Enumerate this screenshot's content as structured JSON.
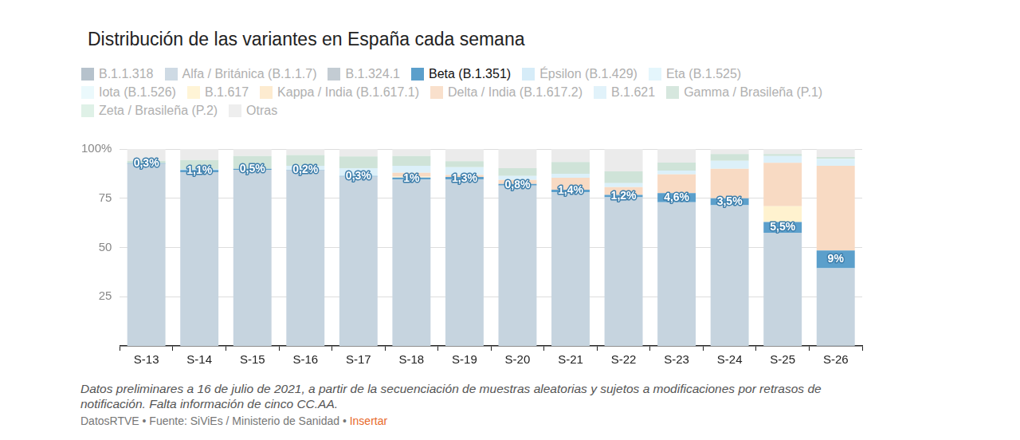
{
  "chart_data": {
    "type": "bar",
    "title": "Distribución de las variantes en España cada semana",
    "stacked": true,
    "grid": true,
    "legend": "top",
    "categories": [
      "S-13",
      "S-14",
      "S-15",
      "S-16",
      "S-17",
      "S-18",
      "S-19",
      "S-20",
      "S-21",
      "S-22",
      "S-23",
      "S-24",
      "S-25",
      "S-26"
    ],
    "ylim": [
      0,
      100
    ],
    "yticks": [
      25,
      50,
      75,
      {
        "value": 100,
        "label": "100%"
      }
    ],
    "series": [
      {
        "name": "B.1.1.318",
        "color": "#a9b7c3",
        "values": [
          0,
          0,
          0,
          0,
          0,
          0,
          0,
          0,
          0,
          0,
          0,
          0,
          0,
          0.5
        ]
      },
      {
        "name": "Alfa / Británica (B.1.1.7)",
        "color": "#c6d4df",
        "values": [
          92.5,
          88.3,
          89.5,
          89.3,
          86,
          84.5,
          84.5,
          81.5,
          78,
          75.5,
          73,
          71.5,
          57.5,
          39
        ]
      },
      {
        "name": "B.1.324.1",
        "color": "#b8c3cb",
        "values": [
          0,
          0,
          0,
          0,
          0,
          0,
          0,
          0,
          0,
          0,
          0,
          0,
          0,
          0
        ]
      },
      {
        "name": "Beta (B.1.351)",
        "color": "#5b9fcb",
        "data_labels": true,
        "values": [
          0.3,
          1.1,
          0.5,
          0.2,
          0.3,
          1,
          1.3,
          0.8,
          1.4,
          1.2,
          4.6,
          3.5,
          5.5,
          9
        ],
        "value_labels": [
          "0,3%",
          "1,1%",
          "0,5%",
          "0,2%",
          "0,3%",
          "1%",
          "1,3%",
          "0,8%",
          "1,4%",
          "1,2%",
          "4,6%",
          "3,5%",
          "5,5%",
          "9%"
        ]
      },
      {
        "name": "Épsilon (B.1.429)",
        "color": "#cfe9f7",
        "values": [
          0,
          0.5,
          0,
          0,
          0,
          0,
          0,
          0,
          0,
          0,
          0,
          0,
          0,
          0
        ]
      },
      {
        "name": "Eta (B.1.525)",
        "color": "#dff4fb",
        "values": [
          0,
          0,
          0,
          0,
          0,
          0,
          0,
          0,
          0,
          0,
          0,
          0,
          0,
          0
        ]
      },
      {
        "name": "Iota (B.1.526)",
        "color": "#e7f8fc",
        "values": [
          0,
          0,
          0,
          0,
          0,
          0,
          0,
          0,
          0,
          0,
          0,
          0,
          0,
          0
        ]
      },
      {
        "name": "B.1.617",
        "color": "#fff2cf",
        "values": [
          0,
          0,
          0,
          0,
          0,
          0.5,
          0,
          0,
          0,
          0,
          0,
          0,
          8,
          0
        ]
      },
      {
        "name": "Kappa / India (B.1.617.1)",
        "color": "#fde7c8",
        "values": [
          0,
          0,
          0,
          0,
          0,
          0,
          0,
          0,
          0,
          0,
          0,
          0,
          0,
          0
        ]
      },
      {
        "name": "Delta / India (B.1.617.2)",
        "color": "#f8dac3",
        "values": [
          0,
          0,
          0,
          0,
          0,
          2,
          1,
          2,
          6,
          4,
          9.5,
          15,
          22,
          43
        ]
      },
      {
        "name": "B.1.621",
        "color": "#dcf0f9",
        "values": [
          0,
          0,
          0,
          2,
          4,
          3.5,
          4,
          2,
          2,
          2,
          2,
          4,
          3.5,
          3.5
        ]
      },
      {
        "name": "Gamma / Brasileña (P.1)",
        "color": "#cfe3d8",
        "values": [
          1.2,
          4.5,
          6.5,
          5.5,
          6,
          5,
          3,
          4,
          6,
          6,
          4,
          3.5,
          1,
          1
        ]
      },
      {
        "name": "Zeta / Brasileña (P.2)",
        "color": "#d9eee3",
        "values": [
          0,
          0,
          0,
          0,
          0,
          0,
          0,
          0,
          0,
          0,
          0,
          0,
          0,
          0
        ]
      },
      {
        "name": "Otras",
        "color": "#ebebeb",
        "values": [
          6,
          5.6,
          3.5,
          3,
          3.7,
          3.5,
          6.2,
          9.7,
          6.6,
          11.3,
          6.9,
          2.5,
          2.5,
          4
        ]
      }
    ],
    "notes": "Datos preliminares a 16 de julio de 2021, a partir de la secuenciación de muestras aleatorias y sujetos a modificaciones por retrasos de notificación. Falta información de cinco CC.AA.",
    "source": "DatosRTVE • Fuente: SiViEs / Ministerio de Sanidad •",
    "link": "Insertar"
  }
}
